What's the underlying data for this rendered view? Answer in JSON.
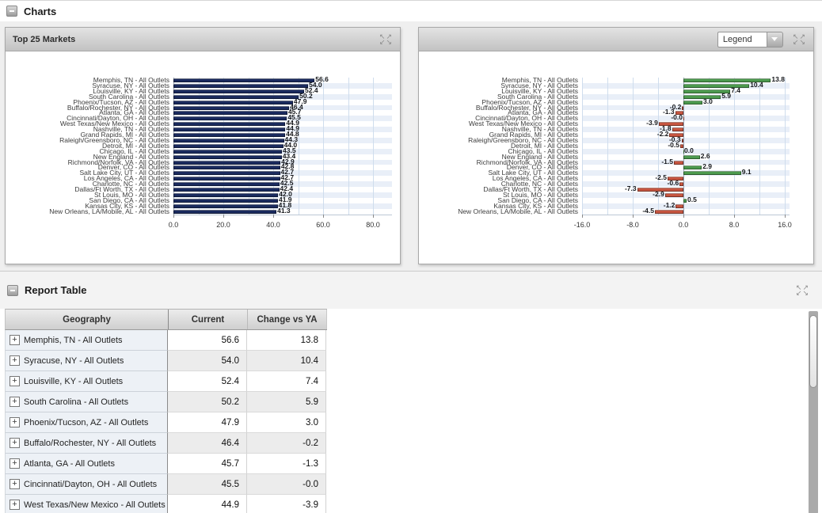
{
  "charts_section": {
    "title": "Charts"
  },
  "report_section": {
    "title": "Report Table"
  },
  "left_panel": {
    "title": "Top 25 Markets"
  },
  "right_panel": {
    "legend_label": "Legend"
  },
  "colors": {
    "bar_navy": "#1a2a5e",
    "bar_positive_green": "#4c9a4e",
    "bar_negative_red": "#c65540",
    "stripe_blue": "#e9eff8"
  },
  "chart_data": [
    {
      "type": "bar",
      "orientation": "horizontal",
      "title": "Top 25 Markets",
      "xlabel": "",
      "ylabel": "",
      "xlim": [
        0,
        80
      ],
      "grid_step": 10,
      "grid": true,
      "xticks": [
        "0.0",
        "20.0",
        "40.0",
        "60.0",
        "80.0"
      ],
      "bar_color": "#1a2a5e",
      "categories": [
        "Memphis, TN - All Outlets",
        "Syracuse, NY - All Outlets",
        "Louisville, KY - All Outlets",
        "South Carolina - All Outlets",
        "Phoenix/Tucson, AZ - All Outlets",
        "Buffalo/Rochester, NY - All Outlets",
        "Atlanta, GA - All Outlets",
        "Cincinnati/Dayton, OH - All Outlets",
        "West Texas/New Mexico - All Outlets",
        "Nashville, TN - All Outlets",
        "Grand Rapids, MI - All Outlets",
        "Raleigh/Greensboro, NC - All Outlets",
        "Detroit, MI - All Outlets",
        "Chicago, IL - All Outlets",
        "New England - All Outlets",
        "Richmond/Norfolk, VA - All Outlets",
        "Denver, CO - All Outlets",
        "Salt Lake City, UT - All Outlets",
        "Los Angeles, CA - All Outlets",
        "Charlotte, NC - All Outlets",
        "Dallas/Ft Worth, TX - All Outlets",
        "St Louis, MO - All Outlets",
        "San Diego, CA - All Outlets",
        "Kansas City, KS - All Outlets",
        "New Orleans, LA/Mobile, AL - All Outlets"
      ],
      "values": [
        "56.6",
        "54.0",
        "52.4",
        "50.2",
        "47.9",
        "46.4",
        "45.7",
        "45.5",
        "44.9",
        "44.9",
        "44.8",
        "44.3",
        "44.0",
        "43.5",
        "43.4",
        "42.9",
        "42.8",
        "42.7",
        "42.7",
        "42.5",
        "42.4",
        "42.0",
        "41.9",
        "41.8",
        "41.3"
      ]
    },
    {
      "type": "bar",
      "orientation": "horizontal",
      "title": "",
      "xlabel": "",
      "ylabel": "",
      "xlim": [
        -16,
        16
      ],
      "grid_step": 4,
      "grid": true,
      "xticks": [
        "-16.0",
        "-8.0",
        "0.0",
        "8.0",
        "16.0"
      ],
      "positive_color": "#4c9a4e",
      "negative_color": "#c65540",
      "categories": [
        "Memphis, TN - All Outlets",
        "Syracuse, NY - All Outlets",
        "Louisville, KY - All Outlets",
        "South Carolina - All Outlets",
        "Phoenix/Tucson, AZ - All Outlets",
        "Buffalo/Rochester, NY - All Outlets",
        "Atlanta, GA - All Outlets",
        "Cincinnati/Dayton, OH - All Outlets",
        "West Texas/New Mexico - All Outlets",
        "Nashville, TN - All Outlets",
        "Grand Rapids, MI - All Outlets",
        "Raleigh/Greensboro, NC - All Outlets",
        "Detroit, MI - All Outlets",
        "Chicago, IL - All Outlets",
        "New England - All Outlets",
        "Richmond/Norfolk, VA - All Outlets",
        "Denver, CO - All Outlets",
        "Salt Lake City, UT - All Outlets",
        "Los Angeles, CA - All Outlets",
        "Charlotte, NC - All Outlets",
        "Dallas/Ft Worth, TX - All Outlets",
        "St Louis, MO - All Outlets",
        "San Diego, CA - All Outlets",
        "Kansas City, KS - All Outlets",
        "New Orleans, LA/Mobile, AL - All Outlets"
      ],
      "values": [
        "13.8",
        "10.4",
        "7.4",
        "5.9",
        "3.0",
        "-0.2",
        "-1.3",
        "-0.0",
        "-3.9",
        "-1.8",
        "-2.2",
        "-0.3",
        "-0.5",
        "0.0",
        "2.6",
        "-1.5",
        "2.9",
        "9.1",
        "-2.5",
        "-0.6",
        "-7.3",
        "-2.9",
        "0.5",
        "-1.2",
        "-4.5"
      ]
    }
  ],
  "table": {
    "columns": [
      "Geography",
      "Current",
      "Change vs YA"
    ],
    "rows": [
      {
        "geography": "Memphis, TN - All Outlets",
        "current": "56.6",
        "change": "13.8"
      },
      {
        "geography": "Syracuse, NY - All Outlets",
        "current": "54.0",
        "change": "10.4"
      },
      {
        "geography": "Louisville, KY - All Outlets",
        "current": "52.4",
        "change": "7.4"
      },
      {
        "geography": "South Carolina - All Outlets",
        "current": "50.2",
        "change": "5.9"
      },
      {
        "geography": "Phoenix/Tucson, AZ - All Outlets",
        "current": "47.9",
        "change": "3.0"
      },
      {
        "geography": "Buffalo/Rochester, NY - All Outlets",
        "current": "46.4",
        "change": "-0.2"
      },
      {
        "geography": "Atlanta, GA - All Outlets",
        "current": "45.7",
        "change": "-1.3"
      },
      {
        "geography": "Cincinnati/Dayton, OH - All Outlets",
        "current": "45.5",
        "change": "-0.0"
      },
      {
        "geography": "West Texas/New Mexico - All Outlets",
        "current": "44.9",
        "change": "-3.9"
      }
    ]
  }
}
